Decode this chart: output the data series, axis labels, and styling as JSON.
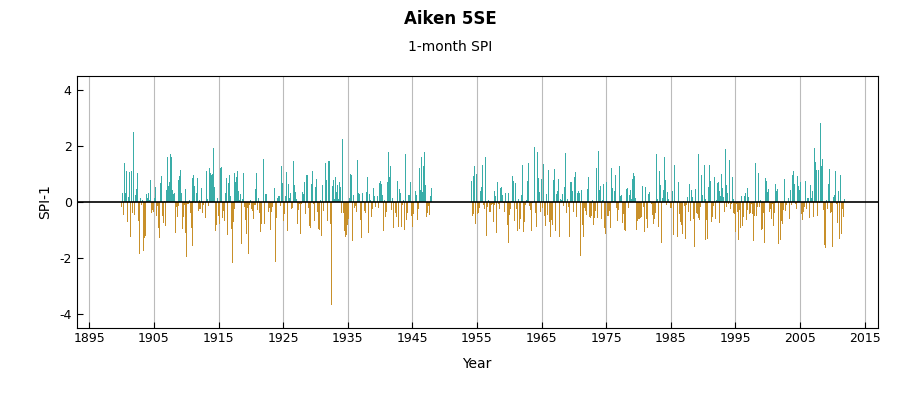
{
  "title": "Aiken 5SE",
  "subtitle": "1-month SPI",
  "ylabel": "SPI-1",
  "xlabel": "Year",
  "xlim": [
    1893,
    2017
  ],
  "ylim": [
    -4.5,
    4.5
  ],
  "yticks": [
    -4,
    -2,
    0,
    2,
    4
  ],
  "xticks": [
    1895,
    1905,
    1915,
    1925,
    1935,
    1945,
    1955,
    1965,
    1975,
    1985,
    1995,
    2005,
    2015
  ],
  "start_year": 1900,
  "end_year": 2012,
  "gap_start": 1948,
  "gap_end": 1954,
  "color_positive": "#3aada8",
  "color_negative": "#c8902a",
  "background_color": "#ffffff",
  "grid_color": "#bbbbbb",
  "seed": 12345
}
